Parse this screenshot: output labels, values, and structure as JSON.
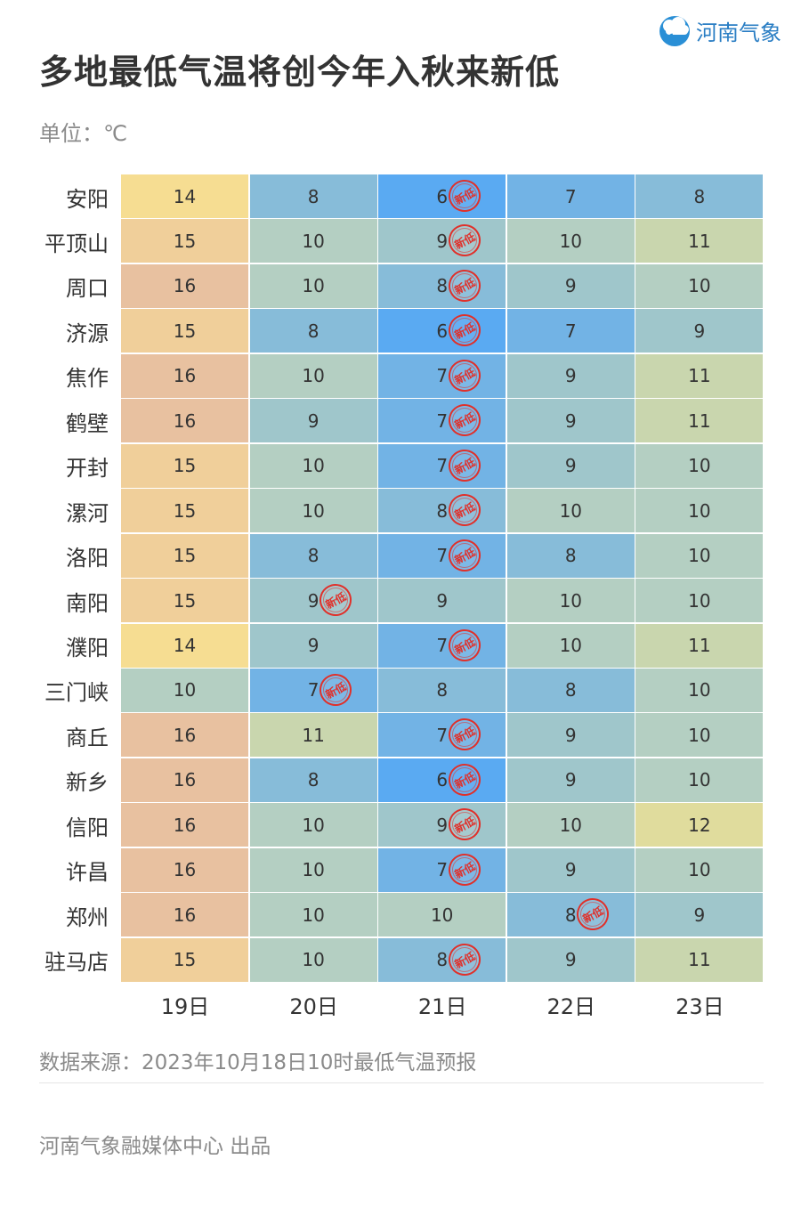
{
  "header": {
    "title": "多地最低气温将创今年入秋来新低",
    "unit": "单位：℃",
    "logo_text": "河南气象",
    "logo_icon": "elephant-cloud-icon"
  },
  "chart_data": {
    "type": "table",
    "title": "多地最低气温将创今年入秋来新低",
    "unit": "℃",
    "columns": [
      "19日",
      "20日",
      "21日",
      "22日",
      "23日"
    ],
    "rows": [
      {
        "city": "安阳",
        "values": [
          14,
          8,
          6,
          7,
          8
        ],
        "new_low": 2
      },
      {
        "city": "平顶山",
        "values": [
          15,
          10,
          9,
          10,
          11
        ],
        "new_low": 2
      },
      {
        "city": "周口",
        "values": [
          16,
          10,
          8,
          9,
          10
        ],
        "new_low": 2
      },
      {
        "city": "济源",
        "values": [
          15,
          8,
          6,
          7,
          9
        ],
        "new_low": 2
      },
      {
        "city": "焦作",
        "values": [
          16,
          10,
          7,
          9,
          11
        ],
        "new_low": 2
      },
      {
        "city": "鹤壁",
        "values": [
          16,
          9,
          7,
          9,
          11
        ],
        "new_low": 2
      },
      {
        "city": "开封",
        "values": [
          15,
          10,
          7,
          9,
          10
        ],
        "new_low": 2
      },
      {
        "city": "漯河",
        "values": [
          15,
          10,
          8,
          10,
          10
        ],
        "new_low": 2
      },
      {
        "city": "洛阳",
        "values": [
          15,
          8,
          7,
          8,
          10
        ],
        "new_low": 2
      },
      {
        "city": "南阳",
        "values": [
          15,
          9,
          9,
          10,
          10
        ],
        "new_low": 1
      },
      {
        "city": "濮阳",
        "values": [
          14,
          9,
          7,
          10,
          11
        ],
        "new_low": 2
      },
      {
        "city": "三门峡",
        "values": [
          10,
          7,
          8,
          8,
          10
        ],
        "new_low": 1
      },
      {
        "city": "商丘",
        "values": [
          16,
          11,
          7,
          9,
          10
        ],
        "new_low": 2
      },
      {
        "city": "新乡",
        "values": [
          16,
          8,
          6,
          9,
          10
        ],
        "new_low": 2
      },
      {
        "city": "信阳",
        "values": [
          16,
          10,
          9,
          10,
          12
        ],
        "new_low": 2
      },
      {
        "city": "许昌",
        "values": [
          16,
          10,
          7,
          9,
          10
        ],
        "new_low": 2
      },
      {
        "city": "郑州",
        "values": [
          16,
          10,
          10,
          8,
          9
        ],
        "new_low": 3
      },
      {
        "city": "驻马店",
        "values": [
          15,
          10,
          8,
          9,
          11
        ],
        "new_low": 2
      }
    ],
    "marker_label": "新低",
    "colors": {
      "6": "#5aaaf2",
      "7": "#72b3e5",
      "8": "#87bcd9",
      "9": "#9fc6cb",
      "10": "#b4cfc2",
      "11": "#c9d6ae",
      "12": "#e0dc9d",
      "14": "#f6dd92",
      "15": "#f0cf9a",
      "16": "#e8c1a0",
      "marker": "#e0302a"
    }
  },
  "footer": {
    "source": "数据来源：2023年10月18日10时最低气温预报",
    "credit": "河南气象融媒体中心 出品"
  }
}
